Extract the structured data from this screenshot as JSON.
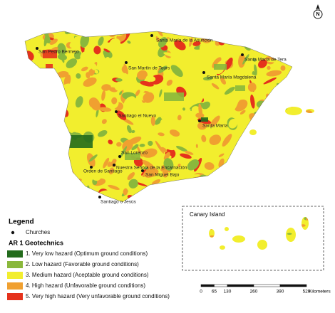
{
  "north": "N",
  "churches": [
    {
      "name": "Santa María de la Asunción"
    },
    {
      "name": "San Pedro Bermejo"
    },
    {
      "name": "San Martín de Tours"
    },
    {
      "name": "Santa María de Tera"
    },
    {
      "name": "Santa María Magdalena"
    },
    {
      "name": "Santiago el Nuevo"
    },
    {
      "name": "Santa María"
    },
    {
      "name": "San Lorenzo"
    },
    {
      "name": "Nuestra Señora de la Encarnación"
    },
    {
      "name": "Orden de Santiago"
    },
    {
      "name": "San Miguel Bajo"
    },
    {
      "name": "Santiago o Jesús"
    }
  ],
  "legend": {
    "title": "Legend",
    "churches_label": "Churches",
    "section": "AR 1 Geotechnics",
    "classes": [
      {
        "label": "1. Very low hazard (Optimum ground conditions)",
        "color": "#236b1c"
      },
      {
        "label": "2. Low hazard (Favorable ground conditions)",
        "color": "#8ab83c"
      },
      {
        "label": "3. Medium hazard (Aceptable ground conditions)",
        "color": "#f2ee2e"
      },
      {
        "label": "4. High hazard (Unfavorable ground conditions)",
        "color": "#f0a030"
      },
      {
        "label": "5. Very high hazard (Very unfavorable ground conditions)",
        "color": "#e5321c"
      }
    ]
  },
  "inset": {
    "title": "Canary Island"
  },
  "scale": {
    "ticks": [
      0,
      65,
      130,
      260,
      390,
      520
    ],
    "unit": "Kilometers"
  }
}
